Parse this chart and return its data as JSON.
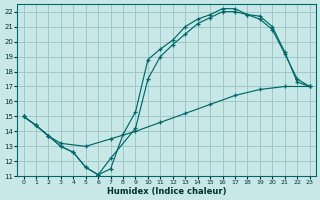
{
  "xlabel": "Humidex (Indice chaleur)",
  "bg_color": "#c8e8e8",
  "grid_color": "#a0c8c8",
  "line_color": "#006868",
  "xlim": [
    -0.5,
    23.5
  ],
  "ylim": [
    11,
    22.5
  ],
  "xticks": [
    0,
    1,
    2,
    3,
    4,
    5,
    6,
    7,
    8,
    9,
    10,
    11,
    12,
    13,
    14,
    15,
    16,
    17,
    18,
    19,
    20,
    21,
    22,
    23
  ],
  "yticks": [
    11,
    12,
    13,
    14,
    15,
    16,
    17,
    18,
    19,
    20,
    21,
    22
  ],
  "line1_x": [
    0,
    1,
    2,
    3,
    4,
    5,
    6,
    7,
    8,
    9,
    10,
    11,
    12,
    13,
    14,
    15,
    16,
    17,
    18,
    19,
    20,
    21,
    22,
    23
  ],
  "line1_y": [
    15.0,
    14.4,
    13.7,
    13.0,
    12.6,
    11.6,
    11.1,
    11.5,
    13.8,
    15.3,
    18.8,
    19.5,
    20.1,
    21.0,
    21.5,
    21.8,
    22.2,
    22.2,
    21.8,
    21.7,
    21.0,
    19.3,
    17.3,
    17.0
  ],
  "line2_x": [
    0,
    1,
    2,
    3,
    4,
    5,
    6,
    7,
    9,
    10,
    11,
    12,
    13,
    14,
    15,
    16,
    17,
    18,
    19,
    20,
    21,
    22,
    23
  ],
  "line2_y": [
    15.0,
    14.4,
    13.7,
    13.0,
    12.6,
    11.6,
    11.1,
    12.2,
    14.2,
    17.5,
    19.0,
    19.8,
    20.5,
    21.2,
    21.6,
    22.0,
    22.0,
    21.8,
    21.5,
    20.8,
    19.2,
    17.5,
    17.0
  ],
  "line3_x": [
    0,
    1,
    2,
    3,
    5,
    7,
    9,
    11,
    13,
    15,
    17,
    19,
    21,
    23
  ],
  "line3_y": [
    15.0,
    14.4,
    13.7,
    13.2,
    13.0,
    13.5,
    14.0,
    14.6,
    15.2,
    15.8,
    16.4,
    16.8,
    17.0,
    17.0
  ]
}
